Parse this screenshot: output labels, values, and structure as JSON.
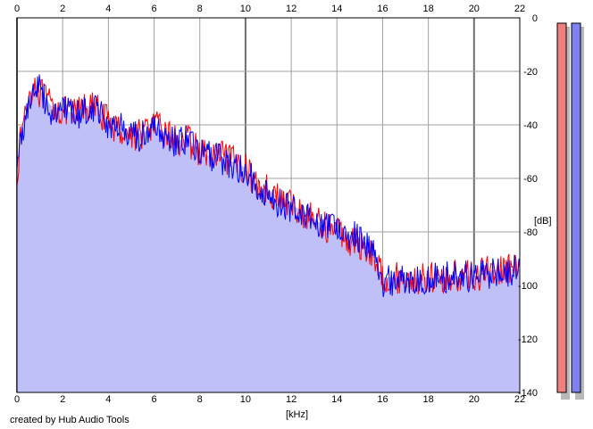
{
  "credit": "created by Hub Audio Tools",
  "chart_data": {
    "type": "line",
    "xlabel": "[kHz]",
    "ylabel": "[dB]",
    "xlim": [
      0,
      22
    ],
    "ylim": [
      -140,
      0
    ],
    "x_ticks": [
      0,
      2,
      4,
      6,
      8,
      10,
      12,
      14,
      16,
      18,
      20,
      22
    ],
    "x_tick_labels": [
      "0",
      "2",
      "4",
      "6",
      "8",
      "10",
      "12",
      "14",
      "16",
      "18",
      "20",
      "22"
    ],
    "y_ticks": [
      0,
      -20,
      -40,
      -60,
      -80,
      -100,
      -120,
      -140
    ],
    "y_tick_labels": [
      "0",
      "-20",
      "-40",
      "-60",
      "-80",
      "-100",
      "-120",
      "-140"
    ],
    "grid": true,
    "fill_color": "#c0c0f8",
    "series": [
      {
        "color": "#ff0000",
        "x": [
          0,
          0.2,
          0.5,
          0.75,
          1,
          1.5,
          2,
          2.5,
          3,
          3.5,
          4,
          4.5,
          5,
          5.5,
          6,
          6.5,
          7,
          7.5,
          8,
          8.5,
          9,
          9.5,
          10,
          10.5,
          11,
          11.5,
          12,
          12.5,
          13,
          13.5,
          14,
          14.5,
          15,
          15.5,
          16,
          16.5,
          17,
          17.5,
          18,
          18.5,
          19,
          19.5,
          20,
          20.5,
          21,
          21.5,
          22
        ],
        "values": [
          -58,
          -43,
          -30,
          -24,
          -28,
          -33,
          -35,
          -36,
          -33,
          -34,
          -39,
          -42,
          -44,
          -43,
          -40,
          -43,
          -46,
          -46,
          -50,
          -52,
          -52,
          -54,
          -56,
          -63,
          -64,
          -68,
          -70,
          -73,
          -75,
          -78,
          -79,
          -83,
          -85,
          -87,
          -97,
          -97,
          -98,
          -98,
          -97,
          -98,
          -97,
          -96,
          -97,
          -95,
          -94,
          -94,
          -95
        ]
      },
      {
        "color": "#0000ff",
        "x": [
          0,
          0.2,
          0.5,
          0.75,
          1,
          1.5,
          2,
          2.5,
          3,
          3.5,
          4,
          4.5,
          5,
          5.5,
          6,
          6.5,
          7,
          7.5,
          8,
          8.5,
          9,
          9.5,
          10,
          10.5,
          11,
          11.5,
          12,
          12.5,
          13,
          13.5,
          14,
          14.5,
          15,
          15.5,
          16,
          16.5,
          17,
          17.5,
          18,
          18.5,
          19,
          19.5,
          20,
          20.5,
          21,
          21.5,
          22
        ],
        "values": [
          -55,
          -44,
          -32,
          -26,
          -27,
          -35,
          -34,
          -37,
          -34,
          -33,
          -40,
          -41,
          -45,
          -44,
          -42,
          -44,
          -47,
          -45,
          -51,
          -52,
          -53,
          -55,
          -57,
          -63,
          -66,
          -69,
          -71,
          -72,
          -76,
          -78,
          -77,
          -81,
          -82,
          -86,
          -99,
          -98,
          -98,
          -97,
          -98,
          -97,
          -97,
          -96,
          -98,
          -96,
          -95,
          -95,
          -94
        ]
      }
    ],
    "level_meters": [
      {
        "color": "#f08080"
      },
      {
        "color": "#8080f0"
      }
    ]
  }
}
